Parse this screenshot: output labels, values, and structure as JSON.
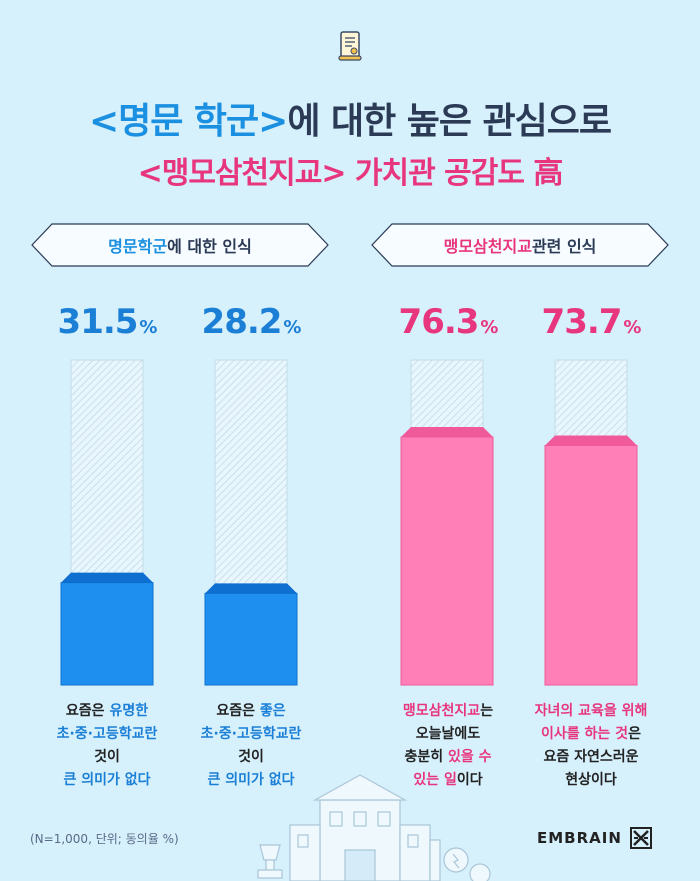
{
  "title": {
    "line1_highlight": "<명문 학군>",
    "line1_rest": "에 대한 높은 관심으로",
    "line2_highlight": "<맹모삼천지교>",
    "line2_rest": " 가치관 공감도 高"
  },
  "groups": [
    {
      "label_highlight": "명문학군",
      "label_rest": "에 대한 인식"
    },
    {
      "label_highlight": "맹모삼천지교",
      "label_rest": " 관련 인식"
    }
  ],
  "chart_data": {
    "type": "bar",
    "unit": "%",
    "ylim": [
      0,
      100
    ],
    "categories": [
      "요즘은 유명한 초·중·고등학교란 것이 큰 의미가 없다",
      "요즘은 좋은 초·중·고등학교란 것이 큰 의미가 없다",
      "맹모삼천지교는 오늘날에도 충분히 있을 수 있는 일이다",
      "자녀의 교육을 위해 이사를 하는 것은 요즘 자연스러운 현상이다"
    ],
    "values": [
      31.5,
      28.2,
      76.3,
      73.7
    ],
    "value_labels": [
      "31.5",
      "28.2",
      "76.3",
      "73.7"
    ],
    "colors": [
      "#1e8fee",
      "#1e8fee",
      "#ff7fb6",
      "#ff7fb6"
    ],
    "colors_top": [
      "#0f6fd0",
      "#0f6fd0",
      "#f05a9a",
      "#f05a9a"
    ]
  },
  "descriptions": [
    {
      "l1a": "요즘은 ",
      "l1b": "유명한",
      "l2": "초·중·고등학교란",
      "l3": "것이",
      "l4": "큰 의미가 없다"
    },
    {
      "l1a": "요즘은 ",
      "l1b": "좋은",
      "l2": "초·중·고등학교란",
      "l3": "것이",
      "l4": "큰 의미가 없다"
    },
    {
      "l1a": "맹모삼천지교",
      "l1b": "는",
      "l2": "오늘날에도",
      "l3a": "충분히 ",
      "l3b": "있을 수",
      "l4a": "있는 일",
      "l4b": "이다"
    },
    {
      "l1": "자녀의 교육을 위해",
      "l2a": "이사를 하는 것",
      "l2b": "은",
      "l3": "요즘 자연스러운",
      "l4": "현상이다"
    }
  ],
  "footnote": "(N=1,000, 단위; 동의율 %)",
  "brand": "EMBRAIN"
}
